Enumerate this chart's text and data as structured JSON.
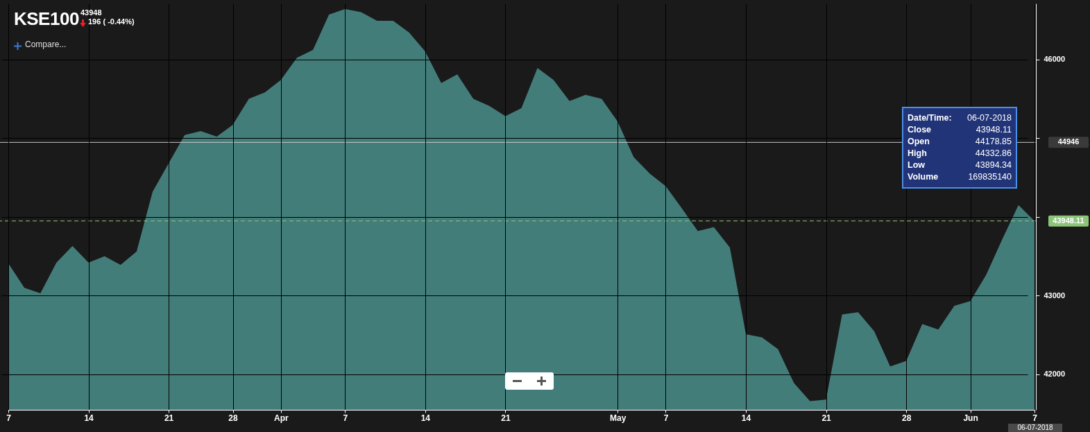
{
  "chart_data": {
    "type": "area",
    "title": "KSE100",
    "categories": [
      "7",
      null,
      null,
      null,
      null,
      "14",
      null,
      null,
      null,
      null,
      "21",
      null,
      null,
      null,
      "28",
      null,
      null,
      "Apr",
      null,
      null,
      null,
      "7",
      null,
      null,
      null,
      null,
      "14",
      null,
      null,
      null,
      null,
      "21",
      null,
      null,
      null,
      null,
      null,
      null,
      "May",
      null,
      null,
      "7",
      null,
      null,
      null,
      null,
      "14",
      null,
      null,
      null,
      null,
      "21",
      null,
      null,
      null,
      null,
      "28",
      null,
      null,
      null,
      "Jun",
      null,
      null,
      null,
      "7"
    ],
    "values": [
      43410,
      43100,
      43030,
      43420,
      43630,
      43420,
      43500,
      43390,
      43560,
      44320,
      44680,
      45040,
      45090,
      45020,
      45170,
      45500,
      45580,
      45740,
      46020,
      46120,
      46570,
      46640,
      46600,
      46490,
      46490,
      46340,
      46100,
      45700,
      45810,
      45500,
      45410,
      45280,
      45380,
      45890,
      45740,
      45470,
      45550,
      45500,
      45210,
      44760,
      44550,
      44390,
      44110,
      43820,
      43870,
      43610,
      42510,
      42470,
      42320,
      41890,
      41660,
      41680,
      42760,
      42790,
      42550,
      42100,
      42170,
      42640,
      42570,
      42870,
      42930,
      43270,
      43720,
      44150,
      43948.11
    ],
    "color": "#437d7a",
    "ylim": [
      41550,
      46710
    ],
    "yticks": [
      42000,
      43000,
      {
        "value": 44000,
        "label": null
      },
      {
        "value": 45000,
        "label": null
      },
      46000
    ],
    "grid": true,
    "ref_lines": [
      {
        "axis": "y",
        "value": 44946,
        "label": "44946",
        "color": "#c8c8c8",
        "line_style": "solid"
      },
      {
        "axis": "y",
        "value": 43948.11,
        "label": "43948.11",
        "color": "#8cc47a",
        "line_style": "dashed"
      }
    ],
    "annotations": [
      "43948",
      "196 ( -0.44%)",
      "Compare...",
      "Date/Time: 06-07-2018",
      "Close 43948.11",
      "Open 44178.85",
      "High 44332.86",
      "Low 43894.34",
      "Volume 169835140",
      "06-07-2018"
    ]
  }
}
